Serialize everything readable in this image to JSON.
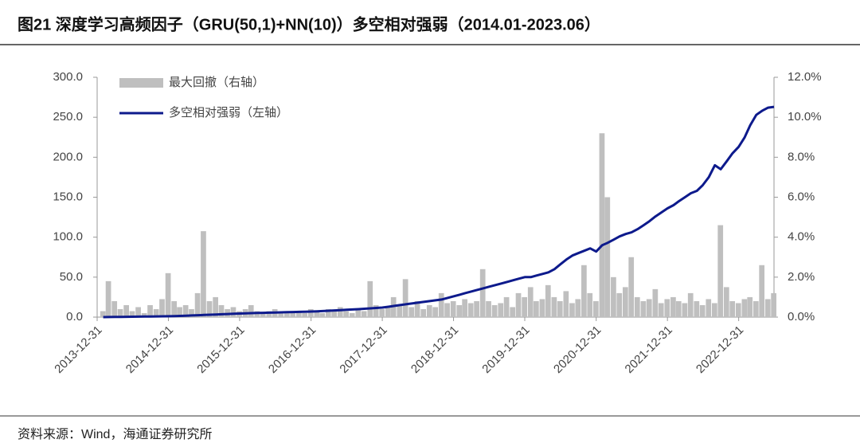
{
  "chart_data": {
    "type": "line",
    "title": "图21 深度学习高频因子（GRU(50,1)+NN(10)）多空相对强弱（2014.01-2023.06）",
    "source": "资料来源：Wind，海通证券研究所",
    "x": [
      "2014-01-31",
      "2014-02-28",
      "2014-03-31",
      "2014-04-30",
      "2014-05-31",
      "2014-06-30",
      "2014-07-31",
      "2014-08-31",
      "2014-09-30",
      "2014-10-31",
      "2014-11-30",
      "2014-12-31",
      "2015-01-31",
      "2015-02-28",
      "2015-03-31",
      "2015-04-30",
      "2015-05-31",
      "2015-06-30",
      "2015-07-31",
      "2015-08-31",
      "2015-09-30",
      "2015-10-31",
      "2015-11-30",
      "2015-12-31",
      "2016-01-31",
      "2016-02-29",
      "2016-03-31",
      "2016-04-30",
      "2016-05-31",
      "2016-06-30",
      "2016-07-31",
      "2016-08-31",
      "2016-09-30",
      "2016-10-31",
      "2016-11-30",
      "2016-12-31",
      "2017-01-31",
      "2017-02-28",
      "2017-03-31",
      "2017-04-30",
      "2017-05-31",
      "2017-06-30",
      "2017-07-31",
      "2017-08-31",
      "2017-09-30",
      "2017-10-31",
      "2017-11-30",
      "2017-12-31",
      "2018-01-31",
      "2018-02-28",
      "2018-03-31",
      "2018-04-30",
      "2018-05-31",
      "2018-06-30",
      "2018-07-31",
      "2018-08-31",
      "2018-09-30",
      "2018-10-31",
      "2018-11-30",
      "2018-12-31",
      "2019-01-31",
      "2019-02-28",
      "2019-03-31",
      "2019-04-30",
      "2019-05-31",
      "2019-06-30",
      "2019-07-31",
      "2019-08-31",
      "2019-09-30",
      "2019-10-31",
      "2019-11-30",
      "2019-12-31",
      "2020-01-31",
      "2020-02-29",
      "2020-03-31",
      "2020-04-30",
      "2020-05-31",
      "2020-06-30",
      "2020-07-31",
      "2020-08-31",
      "2020-09-30",
      "2020-10-31",
      "2020-11-30",
      "2020-12-31",
      "2021-01-31",
      "2021-02-28",
      "2021-03-31",
      "2021-04-30",
      "2021-05-31",
      "2021-06-30",
      "2021-07-31",
      "2021-08-31",
      "2021-09-30",
      "2021-10-31",
      "2021-11-30",
      "2021-12-31",
      "2022-01-31",
      "2022-02-28",
      "2022-03-31",
      "2022-04-30",
      "2022-05-31",
      "2022-06-30",
      "2022-07-31",
      "2022-08-31",
      "2022-09-30",
      "2022-10-31",
      "2022-11-30",
      "2022-12-31",
      "2023-01-31",
      "2023-02-28",
      "2023-03-31",
      "2023-04-30",
      "2023-05-31",
      "2023-06-30"
    ],
    "xlim": [
      "2013-12-31",
      "2023-06-30"
    ],
    "xticks": [
      "2013-12-31",
      "2014-12-31",
      "2015-12-31",
      "2016-12-31",
      "2017-12-31",
      "2018-12-31",
      "2019-12-31",
      "2020-12-31",
      "2021-12-31",
      "2022-12-31"
    ],
    "ylim": [
      0,
      300
    ],
    "yticks": [
      {
        "value": 0,
        "label": "0.0"
      },
      {
        "value": 50,
        "label": "50.0"
      },
      {
        "value": 100,
        "label": "100.0"
      },
      {
        "value": 150,
        "label": "150.0"
      },
      {
        "value": 200,
        "label": "200.0"
      },
      {
        "value": 250,
        "label": "250.0"
      },
      {
        "value": 300,
        "label": "300.0"
      }
    ],
    "y2lim": [
      0,
      12
    ],
    "y2ticks": [
      {
        "value": 0,
        "label": "0.0%"
      },
      {
        "value": 2,
        "label": "2.0%"
      },
      {
        "value": 4,
        "label": "4.0%"
      },
      {
        "value": 6,
        "label": "6.0%"
      },
      {
        "value": 8,
        "label": "8.0%"
      },
      {
        "value": 10,
        "label": "10.0%"
      },
      {
        "value": 12,
        "label": "12.0%"
      }
    ],
    "series": [
      {
        "name": "最大回撤（右轴）",
        "type": "area",
        "axis": "y2",
        "color": "#bfbfbf",
        "values": [
          0.3,
          1.8,
          0.8,
          0.4,
          0.6,
          0.3,
          0.5,
          0.2,
          0.6,
          0.4,
          0.9,
          2.2,
          0.8,
          0.5,
          0.6,
          0.4,
          1.2,
          4.3,
          0.8,
          1.0,
          0.6,
          0.4,
          0.5,
          0.3,
          0.4,
          0.6,
          0.3,
          0.2,
          0.3,
          0.4,
          0.2,
          0.3,
          0.2,
          0.3,
          0.2,
          0.4,
          0.3,
          0.2,
          0.4,
          0.3,
          0.5,
          0.3,
          0.2,
          0.4,
          0.3,
          1.8,
          0.6,
          0.4,
          0.5,
          1.0,
          0.6,
          1.9,
          0.5,
          0.8,
          0.4,
          0.6,
          0.5,
          1.2,
          0.7,
          0.8,
          0.6,
          0.9,
          0.7,
          0.8,
          2.4,
          0.8,
          0.6,
          0.7,
          1.0,
          0.5,
          1.2,
          1.0,
          1.5,
          0.8,
          0.9,
          1.6,
          1.0,
          0.8,
          1.3,
          0.7,
          0.9,
          2.6,
          1.2,
          0.8,
          9.2,
          6.0,
          2.0,
          1.2,
          1.5,
          3.0,
          1.0,
          0.8,
          0.9,
          1.4,
          0.7,
          0.9,
          1.0,
          0.8,
          0.7,
          1.2,
          0.8,
          0.6,
          0.9,
          0.7,
          4.6,
          1.5,
          0.8,
          0.7,
          0.9,
          1.0,
          0.8,
          2.6,
          0.9,
          1.2
        ]
      },
      {
        "name": "多空相对强弱（左轴）",
        "type": "line",
        "color": "#0d1a8c",
        "values": [
          0,
          0.1,
          0.2,
          0.3,
          0.4,
          0.5,
          0.6,
          0.7,
          0.8,
          0.9,
          1.0,
          1.1,
          1.3,
          1.5,
          1.8,
          2.1,
          2.4,
          2.7,
          3.0,
          3.3,
          3.6,
          3.9,
          4.2,
          4.5,
          4.8,
          5.0,
          5.2,
          5.4,
          5.6,
          5.8,
          6.0,
          6.2,
          6.4,
          6.6,
          6.8,
          7.0,
          7.3,
          7.6,
          8.0,
          8.4,
          8.8,
          9.2,
          9.6,
          10.0,
          10.5,
          11.0,
          11.5,
          12.0,
          13,
          14,
          15,
          16,
          17,
          18,
          19,
          20,
          21,
          22,
          24,
          26,
          28,
          30,
          32,
          34,
          36,
          38,
          40,
          42,
          44,
          46,
          48,
          50,
          50,
          52,
          54,
          56,
          60,
          66,
          72,
          77,
          80,
          83,
          86,
          82,
          90,
          93,
          97,
          101,
          104,
          106,
          110,
          115,
          120,
          126,
          131,
          136,
          140,
          145,
          150,
          155,
          158,
          165,
          175,
          190,
          185,
          195,
          205,
          213,
          225,
          240,
          253,
          258,
          262,
          263
        ]
      }
    ]
  }
}
